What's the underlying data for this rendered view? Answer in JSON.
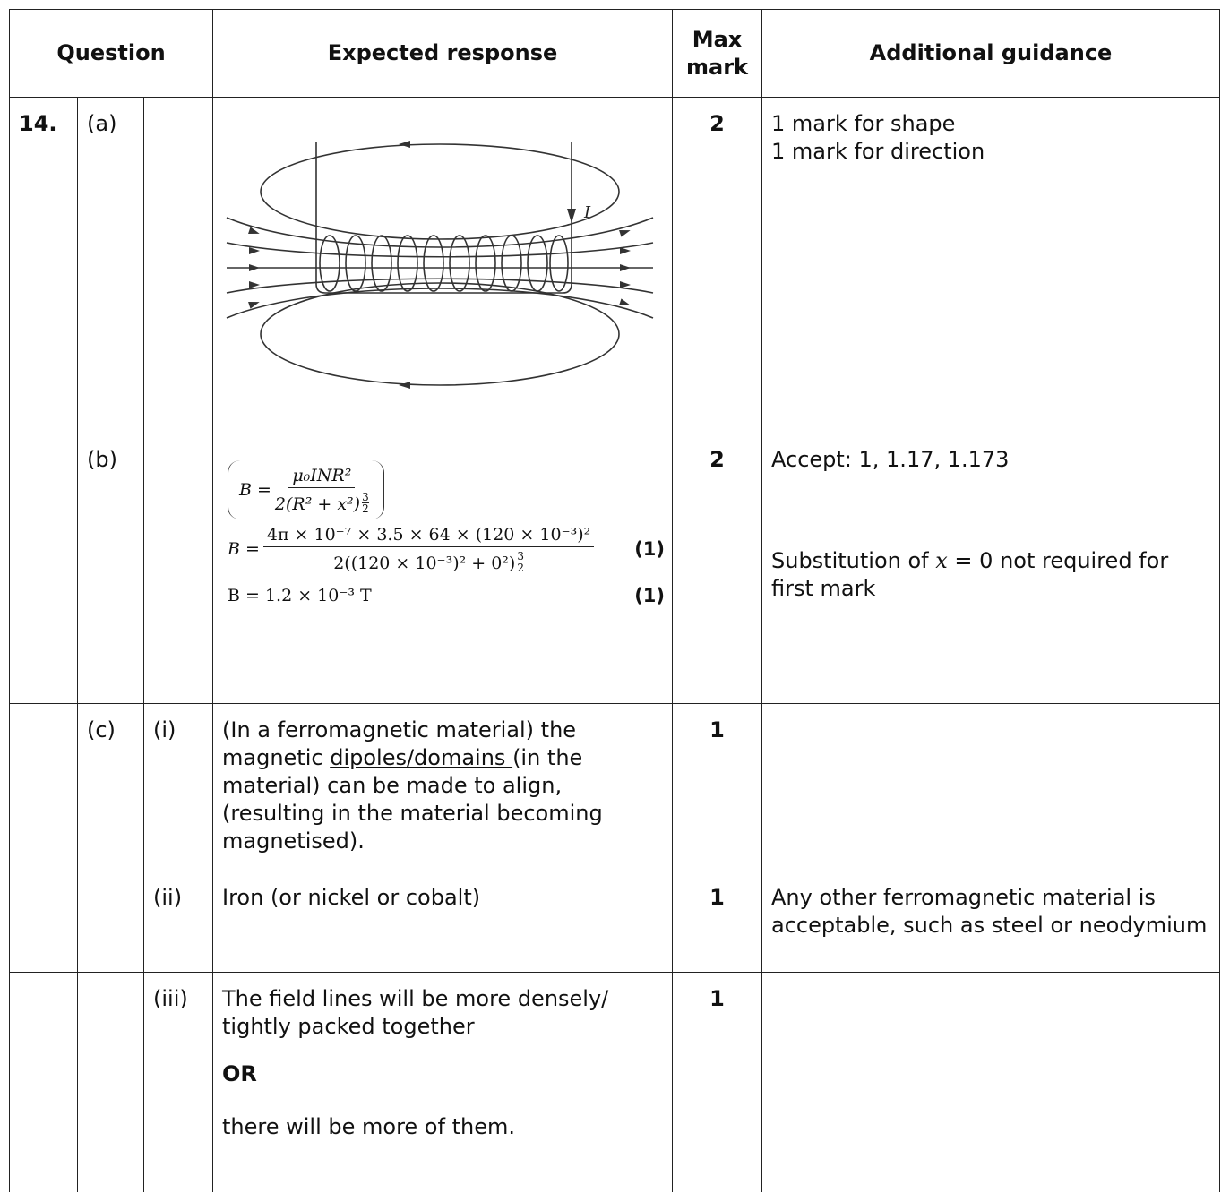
{
  "header": {
    "question": "Question",
    "expected": "Expected response",
    "max_mark": "Max mark",
    "guidance": "Additional guidance"
  },
  "rows": [
    {
      "question": "14.",
      "part": "(a)",
      "diagram_label": "I",
      "max_mark": "2",
      "guidance": [
        "1 mark for shape",
        "1 mark for direction"
      ]
    },
    {
      "part": "(b)",
      "formula": {
        "lhs": "B =",
        "numerator": "μ₀INR²",
        "denominator": "2(R² + x²)",
        "exponent": [
          "3",
          "2"
        ]
      },
      "substitution": {
        "lhs": "B =",
        "numerator": "4π × 10⁻⁷ × 3.5 × 64 × (120 × 10⁻³)²",
        "denominator": "2((120 × 10⁻³)² + 0²)",
        "exponent": [
          "3",
          "2"
        ],
        "mark": "(1)"
      },
      "answer": {
        "text": "B = 1.2 × 10⁻³ T",
        "mark": "(1)"
      },
      "max_mark": "2",
      "guidance": {
        "accept": "Accept: 1, 1.17, 1.173",
        "note": [
          "Substitution of ",
          "x",
          " = 0 not required for first mark"
        ]
      }
    },
    {
      "part": "(c)",
      "sub": "(i)",
      "expected": [
        "(In a ferromagnetic material) the magnetic ",
        "dipoles/domains ",
        "(in the material) can be made to align, (resulting in the material becoming magnetised)."
      ],
      "max_mark": "1"
    },
    {
      "sub": "(ii)",
      "expected": "Iron (or nickel or cobalt)",
      "max_mark": "1",
      "guidance": "Any other ferromagnetic material is acceptable, such as steel or neodymium"
    },
    {
      "sub": "(iii)",
      "expected": [
        "The field lines will be more densely/ tightly packed together",
        "OR",
        "there will be more of them."
      ],
      "max_mark": "1"
    }
  ]
}
